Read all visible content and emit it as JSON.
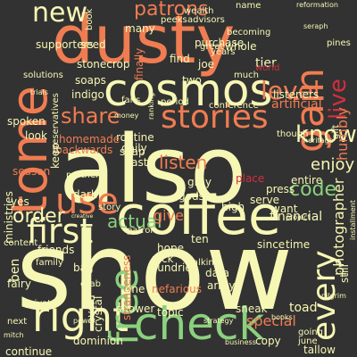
{
  "background": "#323232",
  "palette": {
    "orange": "#F07C52",
    "cream": "#F7F7B5",
    "green": "#8BD17E",
    "red": "#D12F3F",
    "sage": "#A6D096",
    "peach": "#F3A66C",
    "teal": "#58B07F"
  },
  "words": [
    {
      "text": "show"
    },
    {
      "text": "also"
    },
    {
      "text": "dusty"
    },
    {
      "text": "coffee"
    },
    {
      "text": "cosmos"
    },
    {
      "text": "check"
    },
    {
      "text": "tome"
    },
    {
      "text": "stories"
    },
    {
      "text": "first"
    },
    {
      "text": "use"
    },
    {
      "text": "right"
    },
    {
      "text": "free"
    },
    {
      "text": "gain"
    },
    {
      "text": "patrons"
    },
    {
      "text": "new"
    },
    {
      "text": "level"
    },
    {
      "text": "every"
    },
    {
      "text": "know"
    },
    {
      "text": "enjoy"
    },
    {
      "text": "share"
    },
    {
      "text": "order"
    },
    {
      "text": "code"
    },
    {
      "text": "actual"
    },
    {
      "text": "give"
    },
    {
      "text": "live"
    },
    {
      "text": "listen"
    },
    {
      "text": "humbly"
    },
    {
      "text": "photographer"
    },
    {
      "text": "financial"
    },
    {
      "text": "conference"
    },
    {
      "text": "artificial"
    },
    {
      "text": "supporters"
    },
    {
      "text": "indigo"
    },
    {
      "text": "soaps"
    },
    {
      "text": "routine"
    },
    {
      "text": "daily"
    },
    {
      "text": "vast"
    },
    {
      "text": "soap"
    },
    {
      "text": "dark"
    },
    {
      "text": "gray"
    },
    {
      "text": "high"
    },
    {
      "text": "serve"
    },
    {
      "text": "want"
    },
    {
      "text": "entire"
    },
    {
      "text": "gods"
    },
    {
      "text": "place"
    },
    {
      "text": "press"
    },
    {
      "text": "whole"
    },
    {
      "text": "tier"
    },
    {
      "text": "purchase"
    },
    {
      "text": "find"
    },
    {
      "text": "seed"
    },
    {
      "text": "stonecrop"
    },
    {
      "text": "finally"
    },
    {
      "text": "many"
    },
    {
      "text": "friends"
    },
    {
      "text": "family"
    },
    {
      "text": "ben"
    },
    {
      "text": "season"
    },
    {
      "text": "homemade"
    },
    {
      "text": "backwards"
    },
    {
      "text": "partners"
    },
    {
      "text": "hope"
    },
    {
      "text": "pick"
    },
    {
      "text": "patron"
    },
    {
      "text": "story"
    },
    {
      "text": "nefarious"
    },
    {
      "text": "sundries"
    },
    {
      "text": "shower"
    },
    {
      "text": "special"
    },
    {
      "text": "toad"
    },
    {
      "text": "tallow"
    },
    {
      "text": "dominion"
    },
    {
      "text": "continue"
    },
    {
      "text": "next"
    },
    {
      "text": "private"
    },
    {
      "text": "fairy"
    },
    {
      "text": "sneak"
    },
    {
      "text": "still"
    },
    {
      "text": "since"
    },
    {
      "text": "time"
    },
    {
      "text": "copy"
    },
    {
      "text": "going"
    },
    {
      "text": "june"
    },
    {
      "text": "strangeness"
    },
    {
      "text": "topic"
    },
    {
      "text": "array"
    },
    {
      "text": "avoid"
    },
    {
      "text": "crystal"
    },
    {
      "text": "data"
    },
    {
      "text": "grab"
    },
    {
      "text": "one"
    },
    {
      "text": "bag"
    },
    {
      "text": "talking"
    },
    {
      "text": "ministries"
    },
    {
      "text": "spoken"
    },
    {
      "text": "look"
    },
    {
      "text": "yes"
    },
    {
      "text": "content"
    },
    {
      "text": "keep"
    },
    {
      "text": "ten"
    },
    {
      "text": "two"
    },
    {
      "text": "joe"
    },
    {
      "text": "listeners"
    },
    {
      "text": "becoming"
    },
    {
      "text": "name"
    },
    {
      "text": "wealth"
    },
    {
      "text": "advisors"
    },
    {
      "text": "peeks"
    },
    {
      "text": "book"
    },
    {
      "text": "period"
    },
    {
      "text": "years"
    },
    {
      "text": "great"
    },
    {
      "text": "much"
    },
    {
      "text": "world"
    },
    {
      "text": "preservatives"
    },
    {
      "text": "solutions"
    },
    {
      "text": "trials"
    },
    {
      "text": "money"
    },
    {
      "text": "fans"
    },
    {
      "text": "heritage"
    },
    {
      "text": "though"
    },
    {
      "text": "project"
    },
    {
      "text": "business"
    },
    {
      "text": "books"
    },
    {
      "text": "strategy"
    },
    {
      "text": "power"
    },
    {
      "text": "ranking"
    },
    {
      "text": "creative"
    },
    {
      "text": "pines"
    },
    {
      "text": "seraph"
    },
    {
      "text": "reformation"
    },
    {
      "text": "installment"
    },
    {
      "text": "gift"
    },
    {
      "text": "mitch"
    },
    {
      "text": "pilgrim"
    }
  ]
}
